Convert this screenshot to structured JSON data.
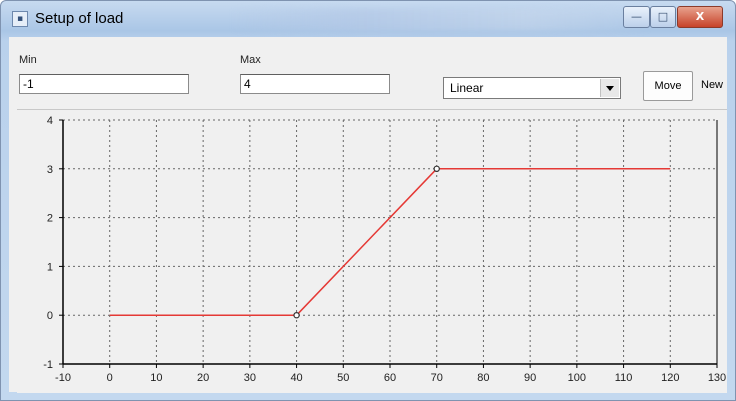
{
  "window": {
    "title": "Setup of load",
    "controls": {
      "minimize": "—",
      "maximize": "□",
      "close": "X"
    }
  },
  "form": {
    "min_label": "Min",
    "min_value": "-1",
    "max_label": "Max",
    "max_value": "4",
    "interpolation_selected": "Linear",
    "move_button": "Move",
    "new_button": "New"
  },
  "icons": [
    "app-icon",
    "chevron-down-icon"
  ],
  "colors": {
    "series": "#e53935",
    "point": "#333333",
    "grid": "#666666"
  },
  "chart_data": {
    "type": "line",
    "x": [
      0,
      40,
      70,
      120
    ],
    "series": [
      {
        "values": [
          0,
          0,
          3,
          3
        ]
      }
    ],
    "control_points_x": [
      40,
      70
    ],
    "xlim": [
      -10,
      130
    ],
    "ylim": [
      -1,
      4
    ],
    "x_ticks": [
      "-10",
      "0",
      "10",
      "20",
      "30",
      "40",
      "50",
      "60",
      "70",
      "80",
      "90",
      "100",
      "110",
      "120",
      "130"
    ],
    "y_ticks": [
      "-1",
      "0",
      "1",
      "2",
      "3",
      "4"
    ],
    "grid": true
  }
}
